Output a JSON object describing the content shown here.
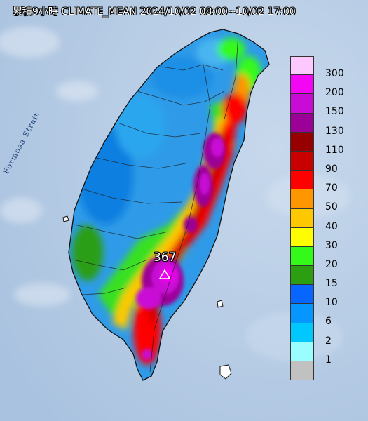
{
  "title": "累積9小時 CLIMATE_MEAN 2024/10/02 08:00~10/02 17:00",
  "sea_label": "Formosa Strait",
  "max_value_label": "367",
  "colors": {
    "sea": "#b9cfe6",
    "land_base": "#2f9be8",
    "boundary": "#2a2a2a"
  },
  "legend": [
    {
      "label": "300",
      "color": "#fdc8fd"
    },
    {
      "label": "200",
      "color": "#f306f3"
    },
    {
      "label": "150",
      "color": "#c90bd6"
    },
    {
      "label": "130",
      "color": "#9b0097"
    },
    {
      "label": "110",
      "color": "#970000"
    },
    {
      "label": "90",
      "color": "#c80000"
    },
    {
      "label": "70",
      "color": "#fe0000"
    },
    {
      "label": "50",
      "color": "#fe9600"
    },
    {
      "label": "40",
      "color": "#fec800"
    },
    {
      "label": "30",
      "color": "#fefe00"
    },
    {
      "label": "20",
      "color": "#34fa1a"
    },
    {
      "label": "15",
      "color": "#2c9e12"
    },
    {
      "label": "10",
      "color": "#0766ff"
    },
    {
      "label": "6",
      "color": "#0696ff"
    },
    {
      "label": "2",
      "color": "#00c8ff"
    },
    {
      "label": "1",
      "color": "#9afeff"
    },
    {
      "label": "",
      "color": "#c1c1c1"
    }
  ]
}
